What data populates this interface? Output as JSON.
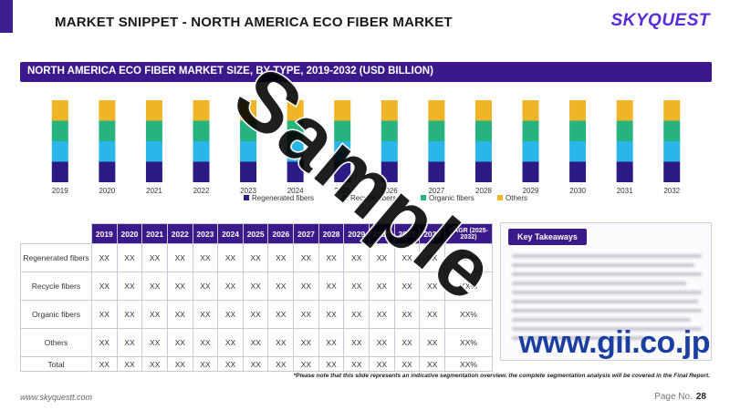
{
  "header": {
    "title": "MARKET SNIPPET - NORTH AMERICA ECO FIBER MARKET",
    "logo": "SKYQUEST"
  },
  "chart_section": {
    "title": "NORTH AMERICA ECO FIBER MARKET SIZE, BY TYPE, 2019-2032 (USD BILLION)"
  },
  "chart_data": {
    "type": "bar",
    "stacked": true,
    "title": "NORTH AMERICA ECO FIBER MARKET SIZE, BY TYPE, 2019-2032 (USD BILLION)",
    "categories": [
      "2019",
      "2020",
      "2021",
      "2022",
      "2023",
      "2024",
      "2025",
      "2026",
      "2027",
      "2028",
      "2029",
      "2030",
      "2031",
      "2032"
    ],
    "series": [
      {
        "name": "Regenerated fibers",
        "color": "#2e1a84",
        "values": [
          1,
          1,
          1,
          1,
          1,
          1,
          1,
          1,
          1,
          1,
          1,
          1,
          1,
          1
        ]
      },
      {
        "name": "Recycle fibers",
        "color": "#29b6e8",
        "values": [
          1,
          1,
          1,
          1,
          1,
          1,
          1,
          1,
          1,
          1,
          1,
          1,
          1,
          1
        ]
      },
      {
        "name": "Organic fibers",
        "color": "#27b37e",
        "values": [
          1,
          1,
          1,
          1,
          1,
          1,
          1,
          1,
          1,
          1,
          1,
          1,
          1,
          1
        ]
      },
      {
        "name": "Others",
        "color": "#f0b429",
        "values": [
          1,
          1,
          1,
          1,
          1,
          1,
          1,
          1,
          1,
          1,
          1,
          1,
          1,
          1
        ]
      }
    ],
    "xlabel": "",
    "ylabel": "",
    "ylim": [
      0,
      4
    ],
    "legend_position": "bottom",
    "grid": false
  },
  "table": {
    "years": [
      "2019",
      "2020",
      "2021",
      "2022",
      "2023",
      "2024",
      "2025",
      "2026",
      "2027",
      "2028",
      "2029",
      "2030",
      "2031",
      "2032"
    ],
    "cagr_header": "CAGR (2025-2032)",
    "rows": [
      {
        "label": "Regenerated fibers",
        "values": [
          "XX",
          "XX",
          "XX",
          "XX",
          "XX",
          "XX",
          "XX",
          "XX",
          "XX",
          "XX",
          "XX",
          "XX",
          "XX",
          "XX"
        ],
        "cagr": "XX%"
      },
      {
        "label": "Recycle fibers",
        "values": [
          "XX",
          "XX",
          "XX",
          "XX",
          "XX",
          "XX",
          "XX",
          "XX",
          "XX",
          "XX",
          "XX",
          "XX",
          "XX",
          "XX"
        ],
        "cagr": "XX%"
      },
      {
        "label": "Organic fibers",
        "values": [
          "XX",
          "XX",
          "XX",
          "XX",
          "XX",
          "XX",
          "XX",
          "XX",
          "XX",
          "XX",
          "XX",
          "XX",
          "XX",
          "XX"
        ],
        "cagr": "XX%"
      },
      {
        "label": "Others",
        "values": [
          "XX",
          "XX",
          "XX",
          "XX",
          "XX",
          "XX",
          "XX",
          "XX",
          "XX",
          "XX",
          "XX",
          "XX",
          "XX",
          "XX"
        ],
        "cagr": "XX%"
      },
      {
        "label": "Total",
        "values": [
          "XX",
          "XX",
          "XX",
          "XX",
          "XX",
          "XX",
          "XX",
          "XX",
          "XX",
          "XX",
          "XX",
          "XX",
          "XX",
          "XX"
        ],
        "cagr": "XX%"
      }
    ]
  },
  "takeaways": {
    "title": "Key Takeaways"
  },
  "note": "*Please note that this slide represents an indicative segmentation overview. the complete segmentation analysis will be covered in the Final Report.",
  "footer": {
    "url": "www.skyquestt.com",
    "page_label": "Page No.",
    "page_number": "28"
  },
  "watermark": {
    "text": "Sample",
    "brand": "www.gii.co.jp"
  }
}
